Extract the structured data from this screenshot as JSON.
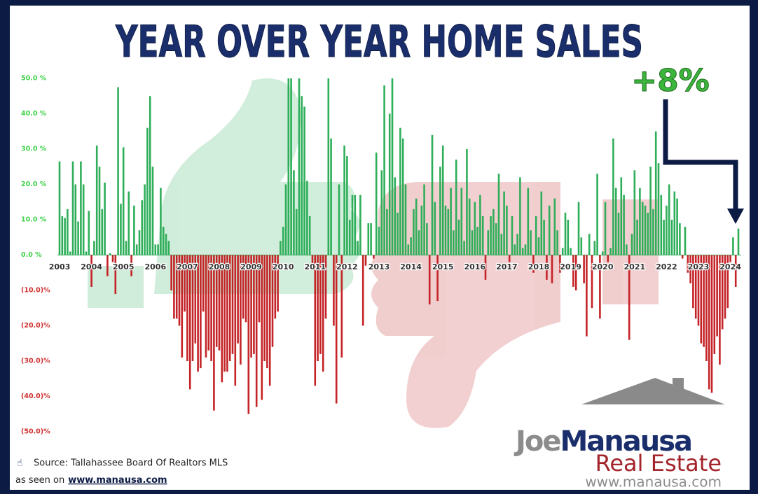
{
  "chart_data": {
    "type": "bar",
    "title": "YEAR OVER YEAR HOME SALES",
    "annotation": "+8%",
    "source": "Source: Tallahassee Board Of Realtors MLS",
    "seen_on": "as seen on",
    "seen_on_url": "www.manausa.com",
    "logo": {
      "brand_first": "Joe",
      "brand_last": "Manausa",
      "line2": "Real Estate",
      "url": "www.manausa.com"
    },
    "positive_color": "#2fae5a",
    "negative_color": "#c42327",
    "ylim": [
      -50,
      50
    ],
    "yticks": [
      {
        "value": 50,
        "label": "50.0 %"
      },
      {
        "value": 40,
        "label": "40.0 %"
      },
      {
        "value": 30,
        "label": "30.0 %"
      },
      {
        "value": 20,
        "label": "20.0 %"
      },
      {
        "value": 10,
        "label": "10.0 %"
      },
      {
        "value": 0,
        "label": "0.0 %"
      },
      {
        "value": -10,
        "label": "(10.0)%"
      },
      {
        "value": -20,
        "label": "(20.0)%"
      },
      {
        "value": -30,
        "label": "(30.0)%"
      },
      {
        "value": -40,
        "label": "(40.0)%"
      },
      {
        "value": -50,
        "label": "(50.0)%"
      }
    ],
    "categories": [
      "2003",
      null,
      null,
      null,
      null,
      null,
      null,
      null,
      null,
      null,
      null,
      null,
      "2004",
      null,
      null,
      null,
      null,
      null,
      null,
      null,
      null,
      null,
      null,
      null,
      "2005",
      null,
      null,
      null,
      null,
      null,
      null,
      null,
      null,
      null,
      null,
      null,
      "2006",
      null,
      null,
      null,
      null,
      null,
      null,
      null,
      null,
      null,
      null,
      null,
      "2007",
      null,
      null,
      null,
      null,
      null,
      null,
      null,
      null,
      null,
      null,
      null,
      "2008",
      null,
      null,
      null,
      null,
      null,
      null,
      null,
      null,
      null,
      null,
      null,
      "2009",
      null,
      null,
      null,
      null,
      null,
      null,
      null,
      null,
      null,
      null,
      null,
      "2010",
      null,
      null,
      null,
      null,
      null,
      null,
      null,
      null,
      null,
      null,
      null,
      "2011",
      null,
      null,
      null,
      null,
      null,
      null,
      null,
      null,
      null,
      null,
      null,
      "2012",
      null,
      null,
      null,
      null,
      null,
      null,
      null,
      null,
      null,
      null,
      null,
      "2013",
      null,
      null,
      null,
      null,
      null,
      null,
      null,
      null,
      null,
      null,
      null,
      "2014",
      null,
      null,
      null,
      null,
      null,
      null,
      null,
      null,
      null,
      null,
      null,
      "2015",
      null,
      null,
      null,
      null,
      null,
      null,
      null,
      null,
      null,
      null,
      null,
      "2016",
      null,
      null,
      null,
      null,
      null,
      null,
      null,
      null,
      null,
      null,
      null,
      "2017",
      null,
      null,
      null,
      null,
      null,
      null,
      null,
      null,
      null,
      null,
      null,
      "2018",
      null,
      null,
      null,
      null,
      null,
      null,
      null,
      null,
      null,
      null,
      null,
      "2019",
      null,
      null,
      null,
      null,
      null,
      null,
      null,
      null,
      null,
      null,
      null,
      "2020",
      null,
      null,
      null,
      null,
      null,
      null,
      null,
      null,
      null,
      null,
      null,
      "2021",
      null,
      null,
      null,
      null,
      null,
      null,
      null,
      null,
      null,
      null,
      null,
      "2022",
      null,
      null,
      null,
      null,
      null,
      null,
      null,
      null,
      null,
      null,
      null,
      "2023",
      null,
      null,
      null,
      null,
      null,
      null,
      null,
      null,
      null,
      null,
      null,
      "2024",
      null,
      null,
      null
    ],
    "values": [
      26.5,
      11,
      10.5,
      13,
      1,
      26.5,
      20,
      9.5,
      26.5,
      20,
      1,
      12.5,
      -9,
      4,
      31,
      25,
      13,
      20.5,
      -6,
      0.5,
      -2,
      -11,
      47.5,
      14.5,
      30.5,
      4,
      18,
      -6,
      14,
      3,
      7,
      15.5,
      20,
      36,
      45,
      25,
      3,
      3,
      19,
      8,
      6,
      4,
      -10,
      -18,
      -18,
      -20,
      -29,
      -16,
      -30,
      -38,
      -30,
      -25,
      -33,
      -32,
      -16,
      -29,
      -27,
      -30,
      -44,
      -26,
      -27,
      -36,
      -33,
      -33,
      -30,
      -28,
      -37,
      -25,
      -31,
      -18,
      -19,
      -45,
      -29,
      -28,
      -43,
      -19,
      -41,
      -30,
      -32,
      -37,
      -26,
      -18,
      -16,
      4,
      8,
      20,
      50,
      50,
      24,
      13,
      50,
      45,
      42,
      21,
      11,
      -3,
      -37,
      -30,
      -28,
      -33,
      -18,
      50,
      33,
      -20,
      -42,
      20,
      -29,
      31,
      28,
      10,
      17,
      17,
      4,
      17,
      -20,
      -3,
      9,
      9,
      -1,
      29,
      8,
      24,
      48,
      13,
      40,
      50,
      22,
      12,
      36,
      33,
      20,
      3,
      5,
      13,
      16,
      7,
      14,
      20,
      9,
      -14,
      34,
      15,
      -13,
      25,
      31,
      14,
      13,
      19,
      7,
      27,
      10,
      19,
      4,
      30,
      16,
      7,
      15,
      8,
      17,
      11,
      -7,
      7,
      11,
      13,
      9,
      23,
      6,
      18,
      14,
      -2,
      11,
      3,
      6,
      22,
      2,
      3,
      19,
      7,
      -5,
      11,
      5,
      18,
      10,
      -7,
      14,
      -8,
      16,
      7,
      -5,
      2,
      12,
      10,
      2,
      -9,
      -10,
      15,
      5,
      -8,
      -23,
      6,
      -15,
      4,
      23,
      -18,
      1,
      15,
      -2,
      2,
      33,
      19,
      12,
      22,
      17,
      3,
      -24,
      6,
      24,
      10,
      19,
      15,
      14,
      12,
      25,
      13,
      35,
      26,
      17,
      10,
      14,
      20,
      10,
      18,
      16,
      9,
      -1,
      8,
      -5,
      -8,
      -15,
      -18,
      -20,
      -25,
      -26,
      -30,
      -38,
      -39,
      -28,
      -23,
      -31,
      -21,
      -18,
      -15,
      -2,
      5,
      -9,
      7.5
    ]
  }
}
